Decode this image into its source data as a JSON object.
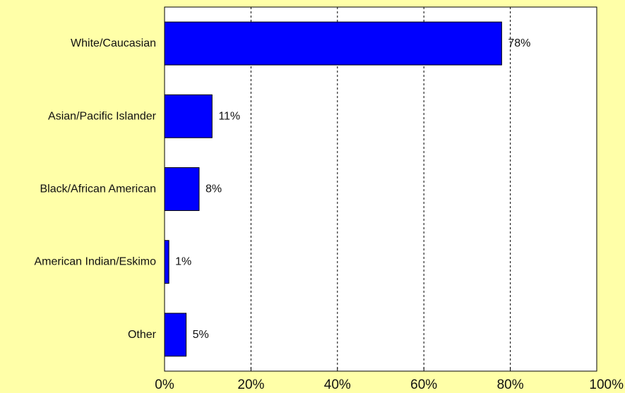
{
  "chart_data": {
    "type": "bar",
    "orientation": "horizontal",
    "title": "",
    "xlabel": "",
    "ylabel": "",
    "categories": [
      "White/Caucasian",
      "Asian/Pacific Islander",
      "Black/African American",
      "American Indian/Eskimo",
      "Other"
    ],
    "values": [
      78,
      11,
      8,
      1,
      5
    ],
    "value_labels": [
      "78%",
      "11%",
      "8%",
      "1%",
      "5%"
    ],
    "xlim": [
      0,
      100
    ],
    "xticks": [
      0,
      20,
      40,
      60,
      80,
      100
    ],
    "xtick_labels": [
      "0%",
      "20%",
      "40%",
      "60%",
      "80%",
      "100%"
    ],
    "grid": "vertical-dashed",
    "bar_color": "#0000ff",
    "plot_background": "#ffffff",
    "page_background": "#ffffa8"
  }
}
